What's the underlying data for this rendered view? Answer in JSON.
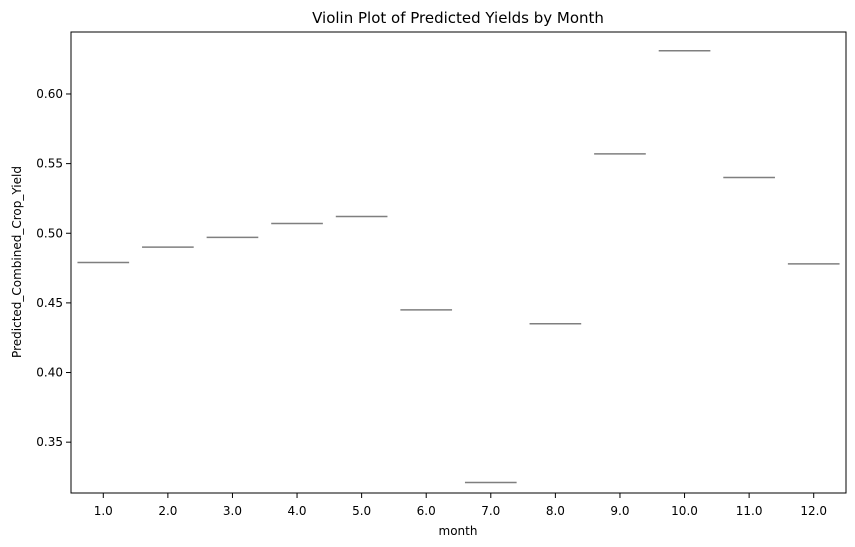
{
  "chart_data": {
    "type": "violin",
    "title": "Violin Plot of Predicted Yields by Month",
    "xlabel": "month",
    "ylabel": "Predicted_Combined_Crop_Yield",
    "categories": [
      "1.0",
      "2.0",
      "3.0",
      "4.0",
      "5.0",
      "6.0",
      "7.0",
      "8.0",
      "9.0",
      "10.0",
      "11.0",
      "12.0"
    ],
    "values": [
      0.479,
      0.49,
      0.497,
      0.507,
      0.512,
      0.445,
      0.321,
      0.435,
      0.557,
      0.631,
      0.54,
      0.478
    ],
    "yticks": [
      0.35,
      0.4,
      0.45,
      0.5,
      0.55,
      0.6
    ],
    "ytick_labels": [
      "0.35",
      "0.40",
      "0.45",
      "0.50",
      "0.55",
      "0.60"
    ],
    "ylim": [
      0.3135,
      0.6445
    ],
    "grid": false,
    "legend": false,
    "colors": {
      "mark": "#7f7f7f",
      "axes": "#000000",
      "background": "#ffffff"
    }
  }
}
